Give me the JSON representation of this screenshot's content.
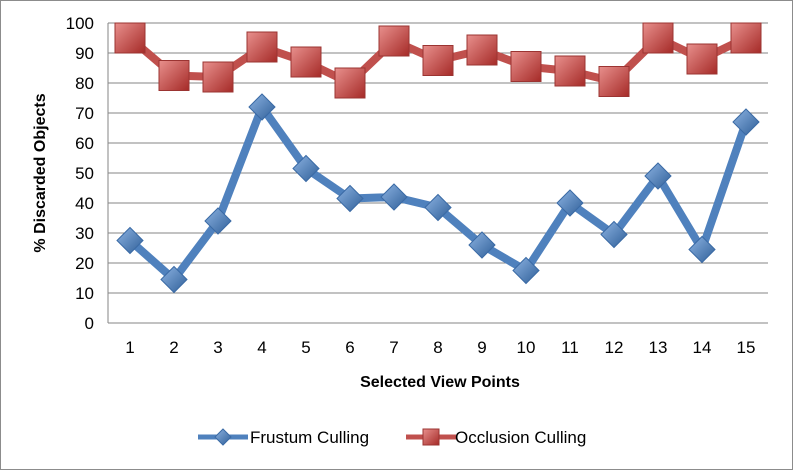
{
  "chart_data": {
    "type": "line",
    "title": "",
    "xlabel": "Selected View Points",
    "ylabel": "% Discarded Objects",
    "categories": [
      "1",
      "2",
      "3",
      "4",
      "5",
      "6",
      "7",
      "8",
      "9",
      "10",
      "11",
      "12",
      "13",
      "14",
      "15"
    ],
    "ylim": [
      0,
      100
    ],
    "yticks": [
      "0",
      "10",
      "20",
      "30",
      "40",
      "50",
      "60",
      "70",
      "80",
      "90",
      "100"
    ],
    "grid": "horizontal",
    "legend_position": "bottom",
    "series": [
      {
        "name": "Frustum Culling",
        "marker": "diamond",
        "color": "#4f81bd",
        "values": [
          27.5,
          14.5,
          34,
          72,
          51.5,
          41.5,
          42,
          38.5,
          26,
          17.5,
          40,
          29.5,
          49,
          24.5,
          67
        ]
      },
      {
        "name": "Occlusion Culling",
        "marker": "square",
        "color": "#c0504d",
        "values": [
          95,
          82.5,
          82,
          92,
          87,
          80,
          94,
          87.5,
          91,
          85.5,
          84,
          80.5,
          95,
          88,
          95
        ]
      }
    ]
  }
}
